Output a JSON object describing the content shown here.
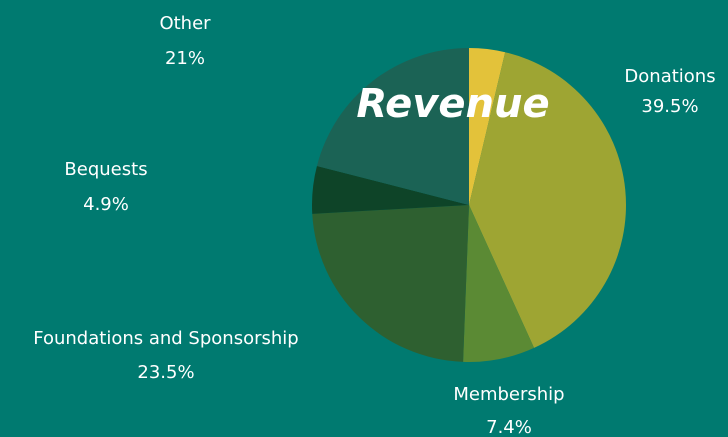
{
  "chart_data": {
    "type": "pie",
    "title": "Revenue",
    "categories": [
      null,
      "Donations",
      "Membership",
      "Foundations and Sponsorship",
      "Bequests",
      "Other"
    ],
    "values": [
      3.7,
      39.5,
      7.4,
      23.5,
      4.9,
      21
    ],
    "value_labels": [
      null,
      "39.5%",
      "7.4%",
      "23.5%",
      "4.9%",
      "21%"
    ],
    "colors": [
      "#e3c23a",
      "#9ea533",
      "#5b8a34",
      "#2e6030",
      "#0e4428",
      "#1b6355"
    ]
  }
}
